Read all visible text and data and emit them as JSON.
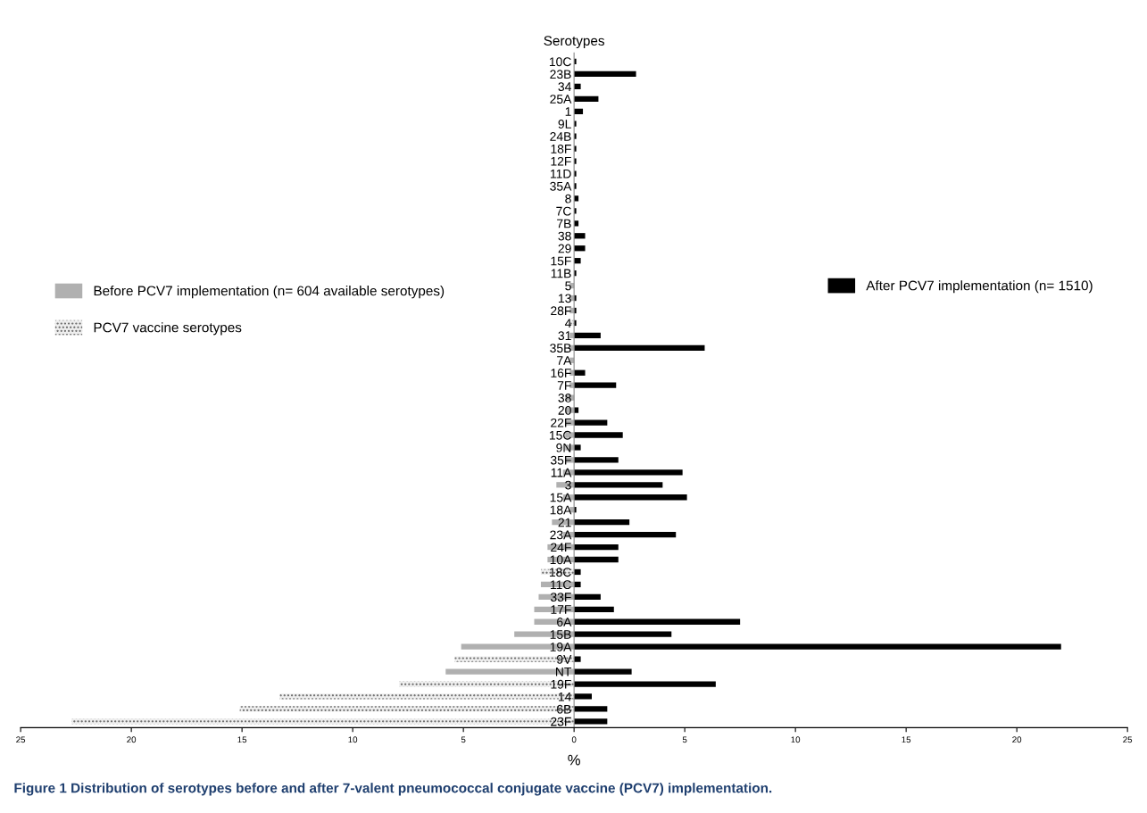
{
  "chart_data": {
    "type": "bar",
    "orientation": "horizontal",
    "title": "Serotypes",
    "xlabel": "%",
    "categories": [
      "10C",
      "23B",
      "34",
      "25A",
      "1",
      "9L",
      "24B",
      "18F",
      "12F",
      "11D",
      "35A",
      "8",
      "7C",
      "7B",
      "38",
      "29",
      "15F",
      "11B",
      "5",
      "13",
      "28F",
      "4",
      "31",
      "35B",
      "7A",
      "16F",
      "7F",
      "38",
      "20",
      "22F",
      "15C",
      "9N",
      "35F",
      "11A",
      "3",
      "15A",
      "18A",
      "21",
      "23A",
      "24F",
      "10A",
      "18C",
      "11C",
      "33F",
      "17F",
      "6A",
      "15B",
      "19A",
      "9V",
      "NT",
      "19F",
      "14",
      "6B",
      "23F"
    ],
    "series": [
      {
        "name": "Before PCV7 implementation (n= 604 available serotypes)",
        "color": "#b0b0b0",
        "values": [
          null,
          null,
          null,
          null,
          null,
          null,
          null,
          null,
          null,
          null,
          null,
          null,
          null,
          null,
          null,
          null,
          null,
          null,
          -0.2,
          -0.2,
          -0.2,
          null,
          -0.2,
          -0.2,
          -0.2,
          -0.2,
          -0.2,
          -0.4,
          -0.4,
          -0.4,
          -0.4,
          -0.4,
          -0.4,
          -0.5,
          -0.8,
          -0.5,
          -0.2,
          -1.0,
          -0.5,
          -1.2,
          -1.2,
          null,
          -1.5,
          -1.6,
          -1.8,
          -1.8,
          -2.7,
          -5.1,
          null,
          -5.8,
          null,
          null,
          null,
          null
        ]
      },
      {
        "name": "PCV7 vaccine serotypes",
        "color": "#eeeeee",
        "values": [
          null,
          null,
          null,
          null,
          null,
          null,
          null,
          null,
          null,
          null,
          null,
          null,
          null,
          null,
          null,
          null,
          null,
          null,
          null,
          null,
          null,
          -0.2,
          null,
          null,
          null,
          null,
          null,
          null,
          null,
          null,
          null,
          null,
          null,
          null,
          null,
          null,
          null,
          null,
          null,
          null,
          null,
          -1.5,
          null,
          null,
          null,
          null,
          null,
          null,
          -5.4,
          null,
          -7.9,
          -13.3,
          -15.1,
          -22.7
        ]
      },
      {
        "name": "After PCV7 implementation (n= 1510)",
        "color": "#000000",
        "values": [
          0.1,
          2.8,
          0.3,
          1.1,
          0.4,
          0.1,
          0.1,
          0.1,
          0.1,
          0.1,
          0.1,
          0.2,
          0.1,
          0.2,
          0.5,
          0.5,
          0.3,
          0.1,
          null,
          0.1,
          0.1,
          0.1,
          1.2,
          5.9,
          null,
          0.5,
          1.9,
          null,
          0.2,
          1.5,
          2.2,
          0.3,
          2.0,
          4.9,
          4.0,
          5.1,
          0.1,
          2.5,
          4.6,
          2.0,
          2.0,
          0.3,
          0.3,
          1.2,
          1.8,
          7.5,
          4.4,
          22.0,
          0.3,
          2.6,
          6.4,
          0.8,
          1.5,
          1.5
        ]
      }
    ],
    "xlim": [
      -25,
      25
    ],
    "xticks": [
      {
        "value": -25,
        "label": "25"
      },
      {
        "value": -20,
        "label": "20"
      },
      {
        "value": -15,
        "label": "15"
      },
      {
        "value": -10,
        "label": "10"
      },
      {
        "value": -5,
        "label": "5"
      },
      0,
      5,
      10,
      15,
      20,
      25
    ],
    "legend": "center",
    "stacked": true,
    "grid": false,
    "annotations": [
      "Figure 1 Distribution of serotypes before and after 7-valent pneumococcal conjugate vaccine (PCV7) implementation."
    ]
  }
}
